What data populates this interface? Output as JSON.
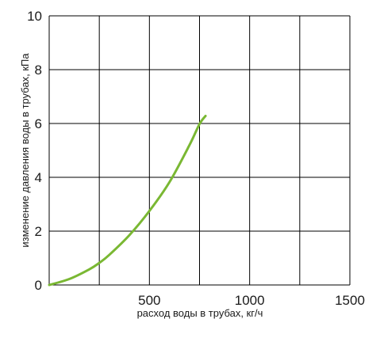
{
  "chart_data": {
    "type": "line",
    "title": "",
    "xlabel": "расход воды в трубах, кг/ч",
    "ylabel": "изменение давления воды в трубах, кПа",
    "xlim": [
      0,
      1500
    ],
    "ylim": [
      0,
      10
    ],
    "x_ticks": [
      500,
      1000,
      1500
    ],
    "x_tick_labels": [
      "500",
      "1000",
      "1500"
    ],
    "y_ticks": [
      0,
      2,
      4,
      6,
      8,
      10
    ],
    "y_tick_labels": [
      "0",
      "2",
      "4",
      "6",
      "8",
      "10"
    ],
    "x_grid": [
      250,
      500,
      750,
      1000,
      1250,
      1500
    ],
    "grid": true,
    "legend": "none",
    "colors": {
      "series": "#7ab833",
      "grid": "#000000"
    },
    "series": [
      {
        "x": [
          0,
          100,
          200,
          250,
          300,
          400,
          500,
          600,
          700,
          750,
          780
        ],
        "y": [
          0,
          0.22,
          0.58,
          0.82,
          1.12,
          1.85,
          2.75,
          3.82,
          5.2,
          5.98,
          6.28
        ]
      }
    ]
  }
}
